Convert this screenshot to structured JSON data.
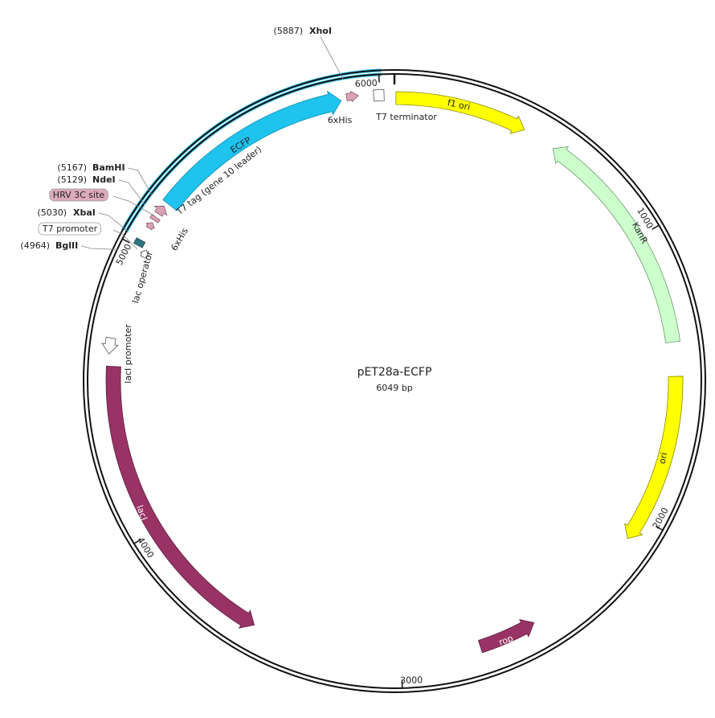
{
  "map": {
    "title": "pET28a-ECFP",
    "length": {
      "value": 6049,
      "label": "6049 bp"
    },
    "ticks": [
      1000,
      2000,
      3000,
      4000,
      5000,
      6000
    ],
    "sites": [
      {
        "position": {
          "value": 5887,
          "label": "(5887)"
        },
        "name": "XhoI"
      },
      {
        "position": {
          "value": 5167,
          "label": "(5167)"
        },
        "name": "BamHI"
      },
      {
        "position": {
          "value": 5129,
          "label": "(5129)"
        },
        "name": "NdeI"
      },
      {
        "position": {
          "value": 5030,
          "label": "(5030)"
        },
        "name": "XbaI"
      },
      {
        "position": {
          "value": 4964,
          "label": "(4964)"
        },
        "name": "BglII"
      }
    ],
    "features": [
      {
        "label": "ECFP"
      },
      {
        "label": "6xHis"
      },
      {
        "label": "T7 terminator"
      },
      {
        "label": "f1 ori"
      },
      {
        "label": "KanR"
      },
      {
        "label": "ori"
      },
      {
        "label": "rop"
      },
      {
        "label": "lacI"
      },
      {
        "label": "lacI promoter"
      },
      {
        "label": "lac operator"
      },
      {
        "label": "T7 promoter"
      },
      {
        "label": "6xHis"
      },
      {
        "label": "HRV 3C site"
      },
      {
        "label": "T7 tag (gene 10 leader)"
      }
    ]
  }
}
